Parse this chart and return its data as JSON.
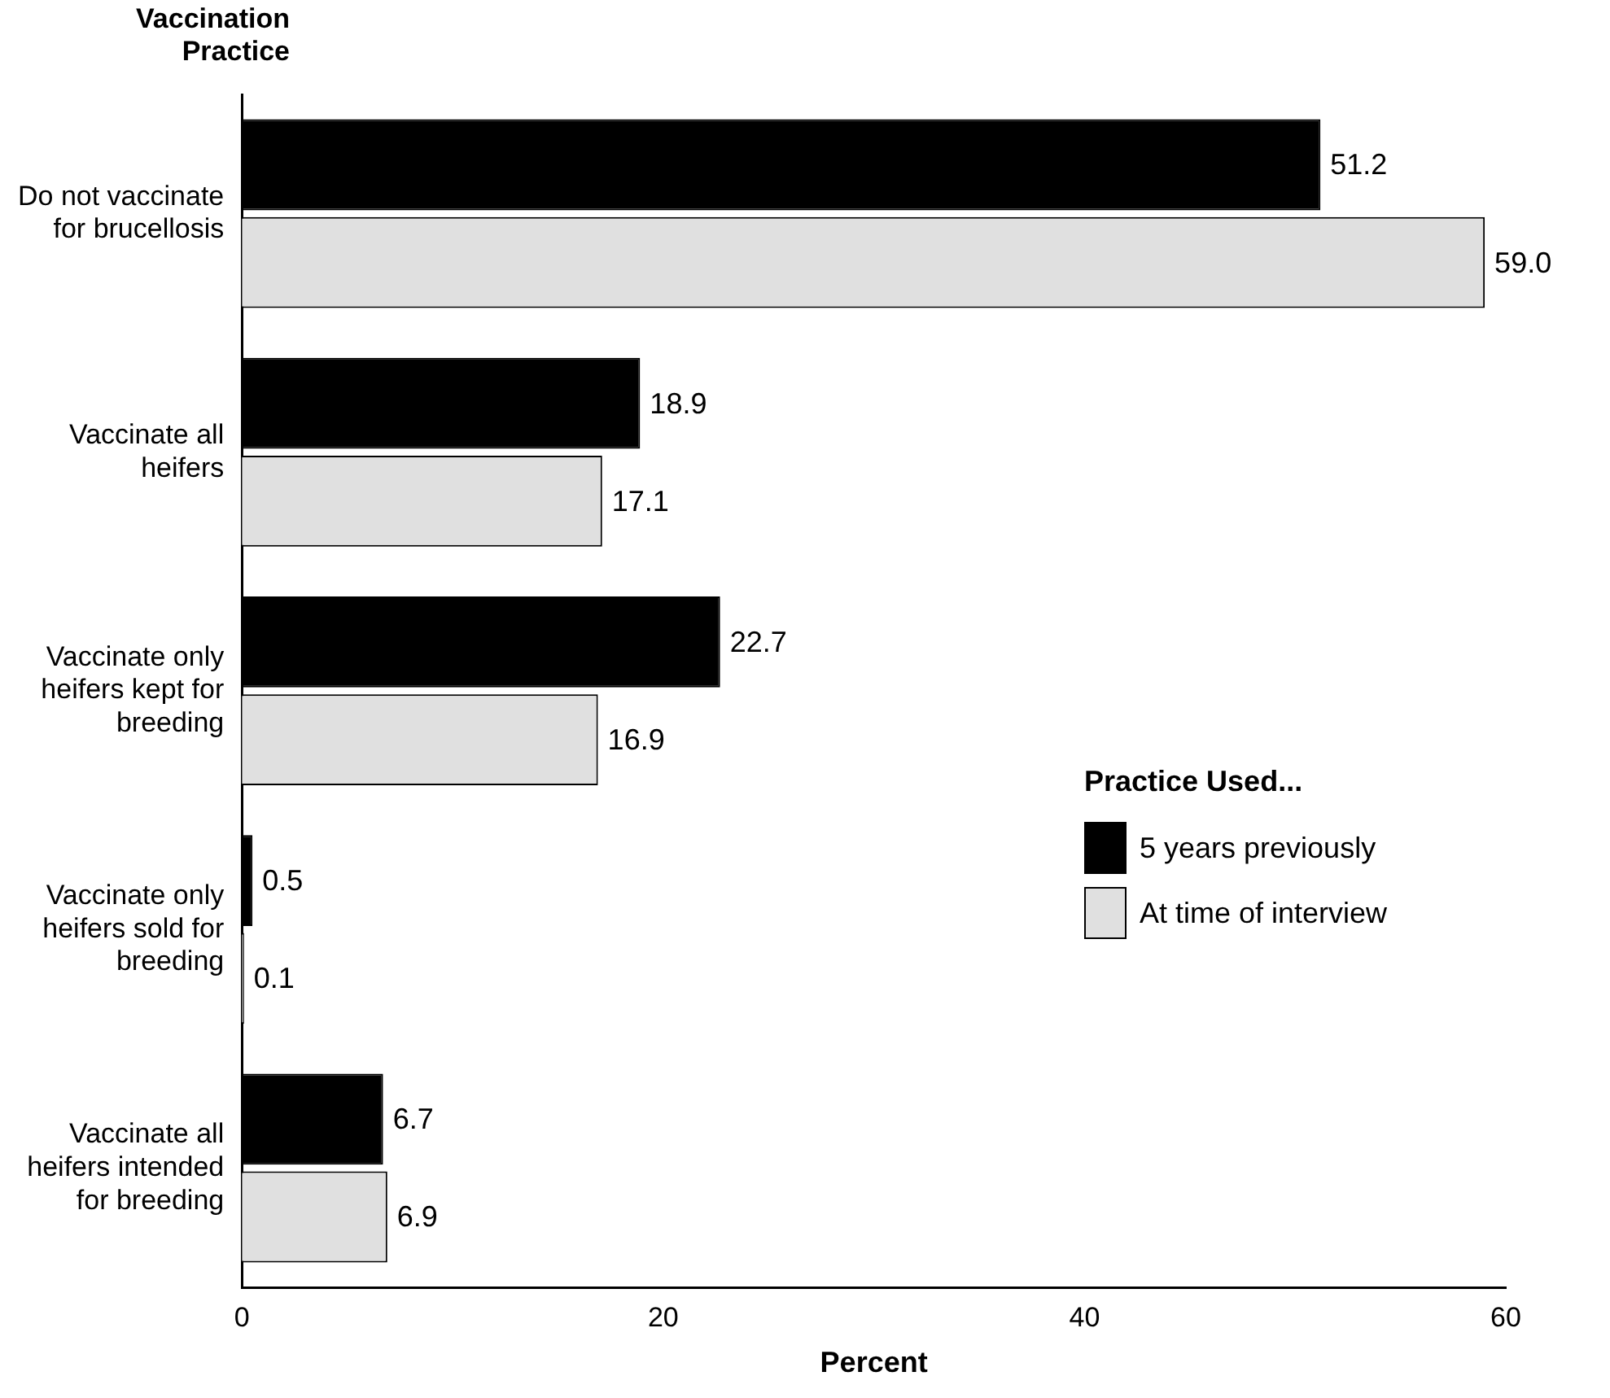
{
  "chart_data": {
    "type": "bar",
    "orientation": "horizontal",
    "xlabel": "Percent",
    "ylabel": "Vaccination Practice",
    "legend_title": "Practice Used...",
    "categories": [
      "Do not vaccinate for brucellosis",
      "Vaccinate all heifers",
      "Vaccinate only heifers kept for breeding",
      "Vaccinate only heifers sold for breeding",
      "Vaccinate all heifers intended for breeding"
    ],
    "series": [
      {
        "name": "5 years previously",
        "color": "#000000",
        "values": [
          51.2,
          18.9,
          22.7,
          0.5,
          6.7
        ],
        "value_labels": [
          "51.2",
          "18.9",
          "22.7",
          "0.5",
          "6.7"
        ]
      },
      {
        "name": "At time of interview",
        "color": "#e0e0e0",
        "values": [
          59.0,
          17.1,
          16.9,
          0.1,
          6.9
        ],
        "value_labels": [
          "59.0",
          "17.1",
          "16.9",
          "0.1",
          "6.9"
        ]
      }
    ],
    "xlim": [
      0,
      60
    ],
    "xticks": [
      0,
      20,
      40,
      60
    ],
    "grid": false,
    "legend": "right"
  }
}
